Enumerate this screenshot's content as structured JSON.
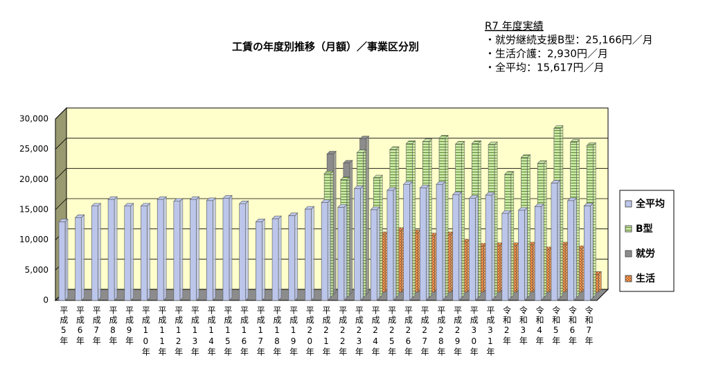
{
  "chart_data": {
    "type": "bar3d",
    "title": "工賃の年度別推移（月額）／事業区分別",
    "annotation": [
      "R7 年度実績",
      "・就労継続支援B型：25,166円／月",
      "・生活介護：2,930円／月",
      "・全平均：15,617円／月"
    ],
    "categories": [
      "平成5年",
      "平成6年",
      "平成7年",
      "平成8年",
      "平成9年",
      "平成10年",
      "平成11年",
      "平成12年",
      "平成13年",
      "平成14年",
      "平成15年",
      "平成16年",
      "平成17年",
      "平成18年",
      "平成19年",
      "平成20年",
      "平成21年",
      "平成22年",
      "平成23年",
      "平成24年",
      "平成25年",
      "平成26年",
      "平成27年",
      "平成28年",
      "平成29年",
      "平成30年",
      "平成31年",
      "令和2年",
      "令和3年",
      "令和4年",
      "令和5年",
      "令和6年",
      "令和7年"
    ],
    "series": [
      {
        "name": "全平均",
        "color": "#bcc6ea",
        "values": [
          13000,
          13700,
          15600,
          16700,
          15600,
          15600,
          16700,
          16400,
          16700,
          16500,
          16900,
          16000,
          13000,
          13500,
          14000,
          15100,
          16200,
          15400,
          18500,
          15000,
          18200,
          19200,
          18600,
          19200,
          17500,
          16900,
          17400,
          14400,
          14900,
          15500,
          19400,
          16500,
          15617
        ]
      },
      {
        "name": "B型",
        "color": "#c9e6a6",
        "values": [
          null,
          null,
          null,
          null,
          null,
          null,
          null,
          null,
          null,
          null,
          null,
          null,
          null,
          null,
          null,
          null,
          20500,
          19500,
          24000,
          19800,
          24500,
          25500,
          25800,
          26400,
          25400,
          25500,
          25300,
          20400,
          23200,
          22200,
          28000,
          25700,
          25166
        ]
      },
      {
        "name": "就労",
        "color": "#8c8c8c",
        "values": [
          null,
          null,
          null,
          null,
          null,
          null,
          null,
          null,
          null,
          null,
          null,
          null,
          null,
          null,
          null,
          null,
          23300,
          21800,
          25800,
          null,
          null,
          null,
          null,
          null,
          null,
          null,
          null,
          null,
          null,
          null,
          null,
          null,
          null
        ]
      },
      {
        "name": "生活",
        "color": "#e07a30",
        "values": [
          null,
          null,
          null,
          null,
          null,
          null,
          null,
          null,
          null,
          null,
          null,
          null,
          null,
          null,
          null,
          null,
          null,
          null,
          null,
          9500,
          10200,
          9800,
          9300,
          9500,
          8300,
          7600,
          7700,
          7700,
          7800,
          7000,
          7800,
          7200,
          2930
        ]
      }
    ],
    "ylim": [
      0,
      30000
    ],
    "yticks": [
      0,
      {
        "value": 5000,
        "label": "5,000"
      },
      {
        "value": 10000,
        "label": "10,000"
      },
      {
        "value": 15000,
        "label": "15,000"
      },
      {
        "value": 20000,
        "label": "20,000"
      },
      {
        "value": 25000,
        "label": "25,000"
      },
      {
        "value": 30000,
        "label": "30,000"
      }
    ],
    "grid": true,
    "legend": "right"
  }
}
